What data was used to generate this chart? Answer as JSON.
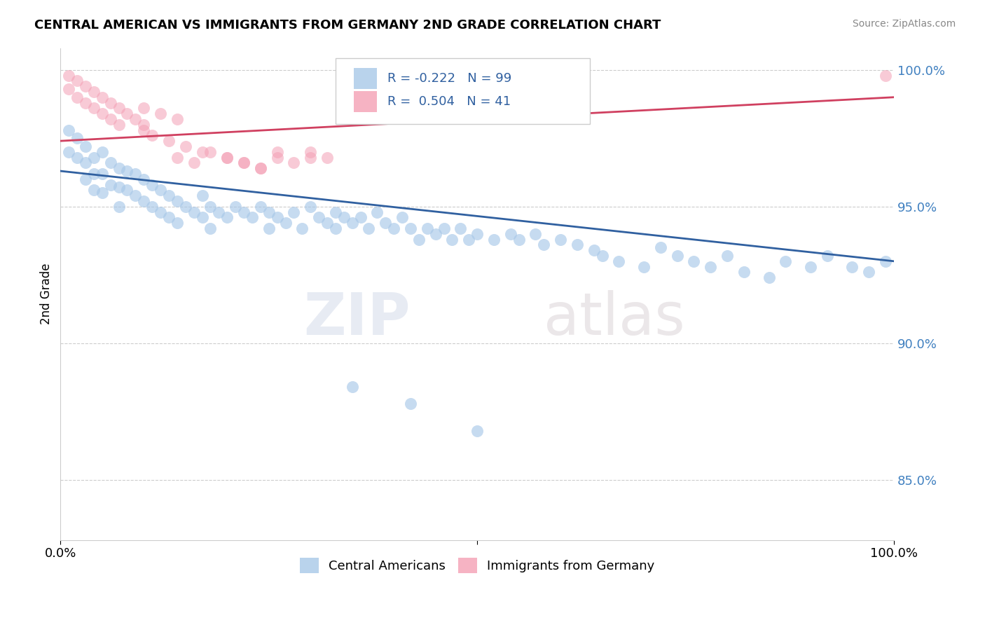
{
  "title": "CENTRAL AMERICAN VS IMMIGRANTS FROM GERMANY 2ND GRADE CORRELATION CHART",
  "source": "Source: ZipAtlas.com",
  "ylabel": "2nd Grade",
  "blue_R": -0.222,
  "blue_N": 99,
  "pink_R": 0.504,
  "pink_N": 41,
  "blue_color": "#a8c8e8",
  "pink_color": "#f4a0b5",
  "blue_line_color": "#3060a0",
  "pink_line_color": "#d04060",
  "tick_color": "#4080c0",
  "background_color": "#ffffff",
  "xlim": [
    0.0,
    1.0
  ],
  "ylim": [
    0.828,
    1.008
  ],
  "yticks": [
    0.85,
    0.9,
    0.95,
    1.0
  ],
  "ytick_labels": [
    "85.0%",
    "90.0%",
    "95.0%",
    "100.0%"
  ],
  "blue_scatter_x": [
    0.01,
    0.01,
    0.02,
    0.02,
    0.03,
    0.03,
    0.03,
    0.04,
    0.04,
    0.04,
    0.05,
    0.05,
    0.05,
    0.06,
    0.06,
    0.07,
    0.07,
    0.07,
    0.08,
    0.08,
    0.09,
    0.09,
    0.1,
    0.1,
    0.11,
    0.11,
    0.12,
    0.12,
    0.13,
    0.13,
    0.14,
    0.14,
    0.15,
    0.16,
    0.17,
    0.17,
    0.18,
    0.18,
    0.19,
    0.2,
    0.21,
    0.22,
    0.23,
    0.24,
    0.25,
    0.25,
    0.26,
    0.27,
    0.28,
    0.29,
    0.3,
    0.31,
    0.32,
    0.33,
    0.33,
    0.34,
    0.35,
    0.36,
    0.37,
    0.38,
    0.39,
    0.4,
    0.41,
    0.42,
    0.43,
    0.44,
    0.45,
    0.46,
    0.47,
    0.48,
    0.49,
    0.5,
    0.52,
    0.54,
    0.55,
    0.57,
    0.58,
    0.6,
    0.62,
    0.64,
    0.65,
    0.67,
    0.7,
    0.72,
    0.74,
    0.76,
    0.78,
    0.8,
    0.82,
    0.85,
    0.87,
    0.9,
    0.92,
    0.95,
    0.97,
    0.99,
    0.35,
    0.42,
    0.5
  ],
  "blue_scatter_y": [
    0.978,
    0.97,
    0.975,
    0.968,
    0.972,
    0.966,
    0.96,
    0.968,
    0.962,
    0.956,
    0.97,
    0.962,
    0.955,
    0.966,
    0.958,
    0.964,
    0.957,
    0.95,
    0.963,
    0.956,
    0.962,
    0.954,
    0.96,
    0.952,
    0.958,
    0.95,
    0.956,
    0.948,
    0.954,
    0.946,
    0.952,
    0.944,
    0.95,
    0.948,
    0.954,
    0.946,
    0.95,
    0.942,
    0.948,
    0.946,
    0.95,
    0.948,
    0.946,
    0.95,
    0.948,
    0.942,
    0.946,
    0.944,
    0.948,
    0.942,
    0.95,
    0.946,
    0.944,
    0.948,
    0.942,
    0.946,
    0.944,
    0.946,
    0.942,
    0.948,
    0.944,
    0.942,
    0.946,
    0.942,
    0.938,
    0.942,
    0.94,
    0.942,
    0.938,
    0.942,
    0.938,
    0.94,
    0.938,
    0.94,
    0.938,
    0.94,
    0.936,
    0.938,
    0.936,
    0.934,
    0.932,
    0.93,
    0.928,
    0.935,
    0.932,
    0.93,
    0.928,
    0.932,
    0.926,
    0.924,
    0.93,
    0.928,
    0.932,
    0.928,
    0.926,
    0.93,
    0.884,
    0.878,
    0.868
  ],
  "pink_scatter_x": [
    0.01,
    0.01,
    0.02,
    0.02,
    0.03,
    0.03,
    0.04,
    0.04,
    0.05,
    0.05,
    0.06,
    0.06,
    0.07,
    0.07,
    0.08,
    0.09,
    0.1,
    0.1,
    0.12,
    0.14,
    0.1,
    0.11,
    0.13,
    0.15,
    0.17,
    0.2,
    0.22,
    0.24,
    0.26,
    0.3,
    0.14,
    0.16,
    0.18,
    0.2,
    0.22,
    0.24,
    0.26,
    0.28,
    0.3,
    0.32,
    0.99
  ],
  "pink_scatter_y": [
    0.998,
    0.993,
    0.996,
    0.99,
    0.994,
    0.988,
    0.992,
    0.986,
    0.99,
    0.984,
    0.988,
    0.982,
    0.986,
    0.98,
    0.984,
    0.982,
    0.986,
    0.98,
    0.984,
    0.982,
    0.978,
    0.976,
    0.974,
    0.972,
    0.97,
    0.968,
    0.966,
    0.964,
    0.97,
    0.968,
    0.968,
    0.966,
    0.97,
    0.968,
    0.966,
    0.964,
    0.968,
    0.966,
    0.97,
    0.968,
    0.998
  ],
  "blue_line_x0": 0.0,
  "blue_line_x1": 1.0,
  "blue_line_y0": 0.963,
  "blue_line_y1": 0.93,
  "pink_line_x0": 0.0,
  "pink_line_x1": 1.0,
  "pink_line_y0": 0.974,
  "pink_line_y1": 0.99
}
